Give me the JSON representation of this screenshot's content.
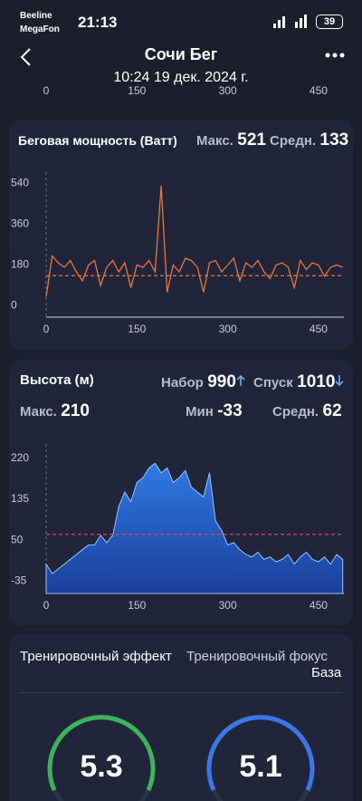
{
  "status_bar": {
    "carrier1": "Beeline",
    "carrier2": "MegaFon",
    "time": "21:13",
    "battery": 39
  },
  "header": {
    "title": "Сочи Бег",
    "subtitle": "10:24 19 дек. 2024 г."
  },
  "previous_chart_axis": {
    "xticks": [
      0,
      150,
      300,
      450
    ]
  },
  "power_stats": {
    "max_label": "Макс.",
    "max": 521,
    "avg_label": "Средн.",
    "avg": 133
  },
  "elevation_stats": {
    "gain_label": "Набор",
    "gain": 990,
    "loss_label": "Спуск",
    "loss": 1010,
    "max_label": "Макс.",
    "max": 210,
    "min_label": "Мин",
    "min": -33,
    "avg_label": "Средн.",
    "avg": 62
  },
  "chart_data": [
    {
      "type": "line",
      "title": "Беговая мощность (Ватт)",
      "x": [
        0,
        10,
        20,
        30,
        40,
        50,
        60,
        70,
        80,
        90,
        100,
        110,
        120,
        130,
        140,
        150,
        160,
        170,
        180,
        190,
        200,
        210,
        220,
        230,
        240,
        250,
        260,
        270,
        280,
        290,
        300,
        310,
        320,
        330,
        340,
        350,
        360,
        370,
        380,
        390,
        400,
        410,
        420,
        430,
        440,
        450,
        460,
        470,
        480,
        490
      ],
      "series": [
        {
          "color": "#e8793a",
          "values": [
            40,
            220,
            190,
            170,
            200,
            150,
            110,
            180,
            200,
            90,
            170,
            200,
            150,
            190,
            80,
            180,
            170,
            200,
            150,
            530,
            60,
            180,
            150,
            210,
            200,
            170,
            60,
            190,
            200,
            150,
            180,
            210,
            110,
            190,
            170,
            200,
            150,
            120,
            180,
            190,
            170,
            80,
            200,
            160,
            190,
            180,
            130,
            170,
            180,
            170
          ]
        }
      ],
      "xlim": [
        0,
        492
      ],
      "ylim": [
        -50,
        590
      ],
      "xticks": [
        0,
        150,
        300,
        450
      ],
      "yticks": [
        0,
        180,
        360,
        540
      ]
    },
    {
      "type": "area",
      "title": "Высота (м)",
      "x": [
        0,
        10,
        20,
        30,
        40,
        50,
        60,
        70,
        80,
        90,
        100,
        110,
        120,
        130,
        140,
        150,
        160,
        170,
        180,
        190,
        200,
        210,
        220,
        230,
        240,
        250,
        260,
        270,
        280,
        290,
        300,
        310,
        320,
        330,
        340,
        350,
        360,
        370,
        380,
        390,
        400,
        410,
        420,
        430,
        440,
        450,
        460,
        470,
        480,
        490
      ],
      "series": [
        {
          "color": "#2f7ae5",
          "values": [
            0,
            -20,
            -10,
            0,
            10,
            20,
            30,
            40,
            40,
            60,
            45,
            60,
            120,
            150,
            130,
            170,
            180,
            200,
            210,
            190,
            200,
            170,
            180,
            195,
            160,
            150,
            140,
            190,
            90,
            70,
            40,
            45,
            30,
            20,
            15,
            25,
            10,
            15,
            5,
            10,
            20,
            0,
            15,
            25,
            10,
            5,
            15,
            0,
            20,
            10
          ]
        }
      ],
      "xlim": [
        0,
        492
      ],
      "ylim": [
        -61,
        250
      ],
      "xticks": [
        0,
        150,
        300,
        450
      ],
      "yticks": [
        -35,
        50,
        135,
        220
      ]
    }
  ],
  "training": {
    "effect_title": "Тренировочный эффект",
    "focus_title": "Тренировочный фокус",
    "focus_value": "База",
    "effect": 5.3,
    "focus_score": 5.1
  }
}
